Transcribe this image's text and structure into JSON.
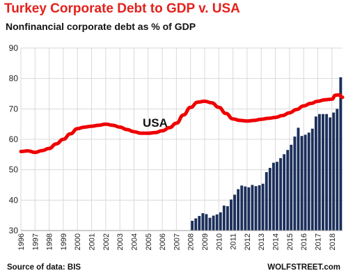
{
  "chart_data": {
    "type": "bar",
    "title": "Turkey Corporate Debt to GDP v. USA",
    "subtitle": "Nonfinancial corporate debt as % of GDP",
    "source": "Source of data: BIS",
    "credit": "WOLFSTREET.com",
    "yticks": [
      30,
      40,
      50,
      60,
      70,
      80,
      90
    ],
    "ylim": [
      30,
      90
    ],
    "xlim": [
      1996,
      2018.75
    ],
    "xticks": [
      "1996",
      "1997",
      "1998",
      "1999",
      "2000",
      "2001",
      "2002",
      "2003",
      "2004",
      "2005",
      "2006",
      "2007",
      "2008",
      "2009",
      "2010",
      "2011",
      "2012",
      "2013",
      "2014",
      "2015",
      "2016",
      "2017",
      "2018"
    ],
    "grid": true,
    "annotation": "USA",
    "colors": {
      "title": "#e3211c",
      "bars": "#1b2f5b",
      "line": "#ee0000",
      "grid": "#d9d9d9"
    },
    "series": [
      {
        "type": "bar",
        "frequency": "quarterly",
        "start": "2008-Q1",
        "values": [
          33.2,
          34.0,
          34.8,
          35.7,
          35.4,
          34.2,
          34.9,
          35.3,
          36.0,
          38.2,
          38.0,
          40.2,
          41.8,
          43.6,
          44.8,
          44.5,
          44.2,
          45.0,
          44.6,
          44.9,
          45.4,
          49.2,
          50.6,
          52.3,
          52.6,
          53.8,
          55.1,
          56.5,
          58.2,
          60.9,
          63.8,
          61.1,
          61.5,
          62.2,
          63.5,
          67.5,
          68.3,
          68.3,
          68.3,
          67.2,
          68.8,
          70.0,
          80.4
        ]
      },
      {
        "name": "USA",
        "type": "line",
        "x": [
          1996.0,
          1996.5,
          1997.0,
          1997.5,
          1998.0,
          1998.5,
          1999.0,
          1999.5,
          2000.0,
          2000.5,
          2001.0,
          2001.5,
          2002.0,
          2002.5,
          2003.0,
          2003.5,
          2004.0,
          2004.5,
          2005.0,
          2005.5,
          2006.0,
          2006.5,
          2007.0,
          2007.5,
          2008.0,
          2008.5,
          2009.0,
          2009.5,
          2010.0,
          2010.5,
          2011.0,
          2011.5,
          2012.0,
          2012.5,
          2013.0,
          2013.5,
          2014.0,
          2014.5,
          2015.0,
          2015.5,
          2016.0,
          2016.5,
          2017.0,
          2017.5,
          2018.0,
          2018.25,
          2018.5,
          2018.75
        ],
        "values": [
          56.0,
          56.2,
          55.7,
          56.3,
          57.0,
          58.5,
          60.0,
          61.8,
          63.5,
          64.0,
          64.3,
          64.6,
          65.0,
          64.6,
          64.0,
          63.2,
          62.5,
          62.0,
          62.0,
          62.2,
          62.8,
          63.8,
          65.3,
          68.0,
          70.5,
          72.2,
          72.5,
          72.0,
          70.5,
          68.5,
          66.7,
          66.2,
          66.0,
          66.2,
          66.6,
          66.9,
          67.2,
          67.8,
          68.7,
          69.8,
          71.0,
          71.8,
          72.5,
          73.0,
          73.2,
          74.5,
          74.6,
          73.8
        ]
      }
    ]
  }
}
